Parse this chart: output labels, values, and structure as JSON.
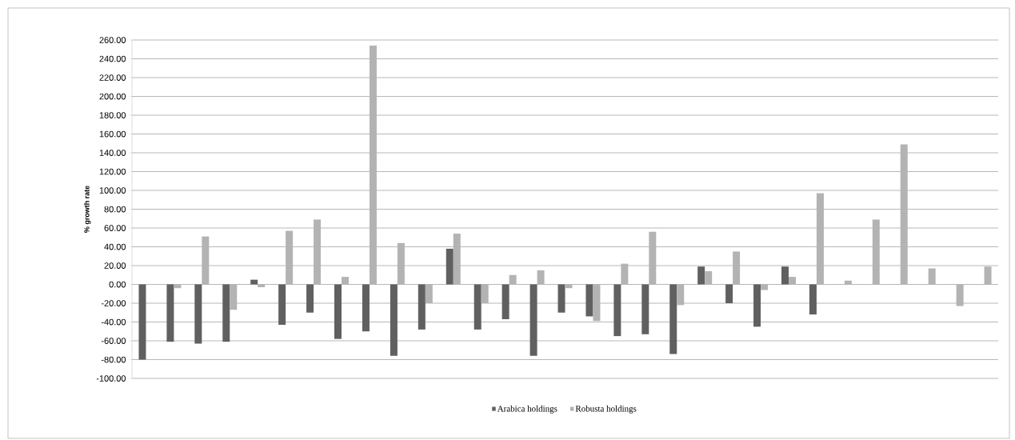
{
  "chart_data": {
    "type": "bar",
    "ylabel": "% growth rate",
    "categories": [
      null,
      null,
      null,
      null,
      null,
      null,
      null,
      null,
      null,
      null,
      null,
      null,
      null,
      null,
      null,
      null,
      null,
      null,
      null,
      null,
      null,
      null,
      null,
      null,
      null,
      null,
      null,
      null,
      null,
      null,
      null
    ],
    "series": [
      {
        "name": "Arabica holdings",
        "color": "#606060",
        "values": [
          -80,
          -61,
          -63,
          -61,
          5,
          -43,
          -30,
          -58,
          -50,
          -76,
          -48,
          38,
          -48,
          -37,
          -76,
          -30,
          -34,
          -55,
          -53,
          -74,
          19,
          -20,
          -45,
          19,
          -32,
          null,
          null,
          null,
          null,
          null,
          null
        ]
      },
      {
        "name": "Robusta holdings",
        "color": "#b3b3b3",
        "values": [
          null,
          -4,
          51,
          -27,
          -3,
          57,
          69,
          8,
          254,
          44,
          -20,
          54,
          -20,
          10,
          15,
          -4,
          -39,
          22,
          56,
          -22,
          14,
          35,
          -6,
          8,
          97,
          4,
          69,
          149,
          17,
          -23,
          19
        ]
      }
    ],
    "ylim": [
      -100,
      260
    ],
    "yticks": [
      {
        "value": -100,
        "label": "-100.00"
      },
      {
        "value": -80,
        "label": "-80.00"
      },
      {
        "value": -60,
        "label": "-60.00"
      },
      {
        "value": -40,
        "label": "-40.00"
      },
      {
        "value": -20,
        "label": "-20.00"
      },
      {
        "value": 0,
        "label": "0.00"
      },
      {
        "value": 20,
        "label": "20.00"
      },
      {
        "value": 40,
        "label": "40.00"
      },
      {
        "value": 60,
        "label": "60.00"
      },
      {
        "value": 80,
        "label": "80.00"
      },
      {
        "value": 100,
        "label": "100.00"
      },
      {
        "value": 120,
        "label": "120.00"
      },
      {
        "value": 140,
        "label": "140.00"
      },
      {
        "value": 160,
        "label": "160.00"
      },
      {
        "value": 180,
        "label": "180.00"
      },
      {
        "value": 200,
        "label": "200.00"
      },
      {
        "value": 220,
        "label": "220.00"
      },
      {
        "value": 240,
        "label": "240.00"
      },
      {
        "value": 260,
        "label": "260.00"
      }
    ],
    "grid": "y",
    "legend": "bottom"
  }
}
